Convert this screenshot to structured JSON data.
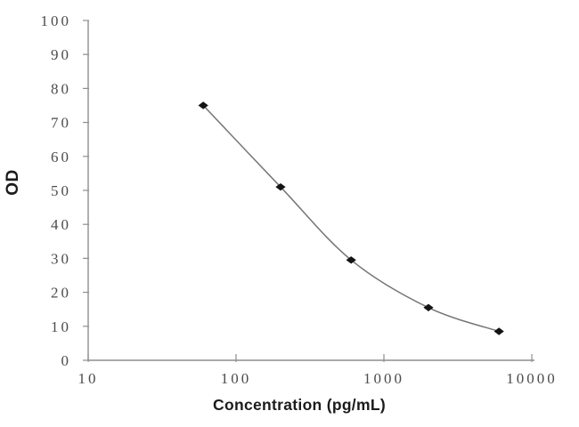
{
  "figure": {
    "background": "#ffffff"
  },
  "chart_data": {
    "type": "line",
    "title": "",
    "xlabel": "Concentration (pg/mL)",
    "ylabel": "OD",
    "x_scale": "log10",
    "xlim": [
      10,
      10000
    ],
    "ylim": [
      0,
      100
    ],
    "x_ticks": [
      10,
      100,
      1000,
      10000
    ],
    "y_ticks": [
      0,
      10,
      20,
      30,
      40,
      50,
      60,
      70,
      80,
      90,
      100
    ],
    "grid": false,
    "legend": "none",
    "marker": "diamond",
    "points": [
      {
        "x": 60,
        "y": 75
      },
      {
        "x": 200,
        "y": 51
      },
      {
        "x": 600,
        "y": 29.5
      },
      {
        "x": 2000,
        "y": 15.5
      },
      {
        "x": 6000,
        "y": 8.5
      }
    ],
    "colors": {
      "line": "#757575",
      "marker": "#141414",
      "axis": "#8e8e8e",
      "tick": "#8e8e8e",
      "tick_label": "#4c4c4c",
      "axis_title": "#1b1b1b"
    }
  }
}
